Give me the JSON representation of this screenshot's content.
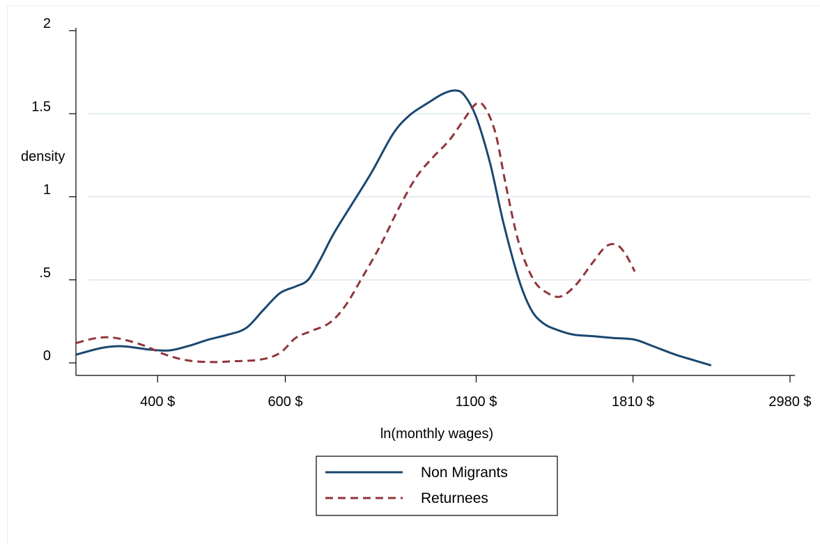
{
  "chart_data": {
    "type": "line",
    "xlabel": "ln(monthly wages)",
    "ylabel": "density",
    "x_scale": "log",
    "xlim": [
      310,
      3020
    ],
    "ylim": [
      0,
      2
    ],
    "x_ticks": [
      {
        "value": 400,
        "label": "400 $"
      },
      {
        "value": 600,
        "label": "600 $"
      },
      {
        "value": 1100,
        "label": "1100 $"
      },
      {
        "value": 1810,
        "label": "1810 $"
      },
      {
        "value": 2980,
        "label": "2980 $"
      }
    ],
    "y_ticks": [
      {
        "value": 0,
        "label": "0"
      },
      {
        "value": 0.5,
        "label": ".5"
      },
      {
        "value": 1,
        "label": "1"
      },
      {
        "value": 1.5,
        "label": "1.5"
      },
      {
        "value": 2,
        "label": "2"
      }
    ],
    "grid": "horizontal",
    "legend_position": "bottom-center",
    "colors": {
      "non_migrants": "#1a476f",
      "returnees": "#90353b",
      "grid": "#e4ebf0"
    },
    "series": [
      {
        "name": "Non Migrants",
        "style": "solid",
        "points": [
          [
            309,
            0.05
          ],
          [
            335,
            0.09
          ],
          [
            358,
            0.1
          ],
          [
            390,
            0.08
          ],
          [
            415,
            0.075
          ],
          [
            440,
            0.1
          ],
          [
            470,
            0.14
          ],
          [
            500,
            0.17
          ],
          [
            530,
            0.21
          ],
          [
            560,
            0.32
          ],
          [
            590,
            0.42
          ],
          [
            620,
            0.46
          ],
          [
            645,
            0.5
          ],
          [
            670,
            0.62
          ],
          [
            700,
            0.78
          ],
          [
            740,
            0.95
          ],
          [
            790,
            1.15
          ],
          [
            845,
            1.38
          ],
          [
            890,
            1.49
          ],
          [
            940,
            1.56
          ],
          [
            990,
            1.62
          ],
          [
            1030,
            1.64
          ],
          [
            1060,
            1.61
          ],
          [
            1100,
            1.48
          ],
          [
            1150,
            1.2
          ],
          [
            1200,
            0.84
          ],
          [
            1260,
            0.5
          ],
          [
            1310,
            0.32
          ],
          [
            1360,
            0.24
          ],
          [
            1420,
            0.2
          ],
          [
            1500,
            0.17
          ],
          [
            1600,
            0.16
          ],
          [
            1700,
            0.15
          ],
          [
            1820,
            0.14
          ],
          [
            1930,
            0.1
          ],
          [
            2070,
            0.05
          ],
          [
            2200,
            0.015
          ],
          [
            2320,
            -0.015
          ]
        ]
      },
      {
        "name": "Returnees",
        "style": "dashed",
        "points": [
          [
            309,
            0.12
          ],
          [
            330,
            0.15
          ],
          [
            350,
            0.15
          ],
          [
            380,
            0.11
          ],
          [
            410,
            0.05
          ],
          [
            440,
            0.015
          ],
          [
            475,
            0.005
          ],
          [
            510,
            0.01
          ],
          [
            555,
            0.02
          ],
          [
            590,
            0.06
          ],
          [
            620,
            0.15
          ],
          [
            650,
            0.19
          ],
          [
            690,
            0.24
          ],
          [
            725,
            0.34
          ],
          [
            765,
            0.51
          ],
          [
            810,
            0.7
          ],
          [
            860,
            0.93
          ],
          [
            910,
            1.12
          ],
          [
            960,
            1.24
          ],
          [
            1010,
            1.34
          ],
          [
            1060,
            1.47
          ],
          [
            1100,
            1.56
          ],
          [
            1130,
            1.54
          ],
          [
            1170,
            1.38
          ],
          [
            1210,
            1.06
          ],
          [
            1260,
            0.72
          ],
          [
            1320,
            0.5
          ],
          [
            1380,
            0.42
          ],
          [
            1440,
            0.4
          ],
          [
            1510,
            0.47
          ],
          [
            1590,
            0.6
          ],
          [
            1660,
            0.7
          ],
          [
            1720,
            0.71
          ],
          [
            1770,
            0.65
          ],
          [
            1820,
            0.55
          ]
        ]
      }
    ]
  }
}
